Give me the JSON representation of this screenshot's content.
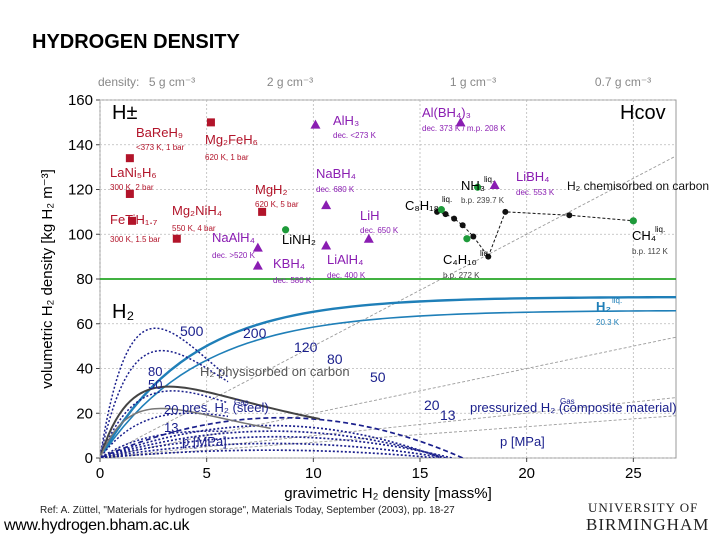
{
  "title": "HYDROGEN DENSITY",
  "reference": "Ref: A. Züttel, \"Materials for hydrogen storage\", Materials Today, September (2003), pp. 18-27",
  "url": "www.hydrogen.bham.ac.uk",
  "university": {
    "line1": "UNIVERSITY OF",
    "line2": "BIRMINGHAM"
  },
  "colors": {
    "material": "#b2142a",
    "complex": "#8a1db2",
    "dot": "#1e9a3a",
    "pressure": "#1a1f8c",
    "h2liquid": "#1f7fb8",
    "h2line": "#26a626",
    "grid": "#b9b9b9",
    "gray": "#888888"
  },
  "chart_data": {
    "type": "scatter",
    "xlabel": "gravimetric H₂ density [mass%]",
    "ylabel": "volumetric H₂ density [kg H₂ m⁻³]",
    "xlim": [
      0,
      27
    ],
    "ylim": [
      0,
      160
    ],
    "xticks": [
      0,
      5,
      10,
      15,
      20,
      25
    ],
    "yticks": [
      0,
      20,
      40,
      60,
      80,
      100,
      120,
      140,
      160
    ],
    "grid": true,
    "density_label": "density:",
    "density_lines": [
      {
        "label": "5 g cm⁻³",
        "slope": 5
      },
      {
        "label": "2 g cm⁻³",
        "slope": 2
      },
      {
        "label": "1 g cm⁻³",
        "slope": 1
      },
      {
        "label": "0.7 g cm⁻³",
        "slope": 0.7
      }
    ],
    "regions": {
      "upper": "H±",
      "upper_right": "Hcov",
      "lower": "H₂",
      "h2_line_y": 80
    },
    "materials": [
      {
        "name": "BaReH₉",
        "x": 1.4,
        "y": 134,
        "note": "<373 K, 1 bar",
        "marker": "square",
        "color": "material"
      },
      {
        "name": "Mg₂FeH₆",
        "x": 5.2,
        "y": 150,
        "note": "620 K, 1 bar",
        "marker": "square",
        "color": "material"
      },
      {
        "name": "LaNi₅H₆",
        "x": 1.4,
        "y": 118,
        "note": "300 K, 2 bar",
        "marker": "square",
        "color": "material"
      },
      {
        "name": "FeTiH₁.₇",
        "x": 1.5,
        "y": 106,
        "note": "300 K, 1.5 bar",
        "marker": "square",
        "color": "material"
      },
      {
        "name": "MgH₂",
        "x": 7.6,
        "y": 110,
        "note": "620 K, 5 bar",
        "marker": "square",
        "color": "material"
      },
      {
        "name": "Mg₂NiH₄",
        "x": 3.6,
        "y": 98,
        "note": "550 K, 4 bar",
        "marker": "square",
        "color": "material"
      },
      {
        "name": "NaAlH₄",
        "x": 7.4,
        "y": 94,
        "note": "dec. >520 K",
        "marker": "triangle",
        "color": "complex"
      },
      {
        "name": "LiNH₂",
        "x": 8.7,
        "y": 102,
        "note": "",
        "marker": "circle",
        "color": "dot"
      },
      {
        "name": "KBH₄",
        "x": 7.4,
        "y": 86,
        "note": "dec. 580 K",
        "marker": "triangle",
        "color": "complex"
      },
      {
        "name": "AlH₃",
        "x": 10.1,
        "y": 149,
        "note": "dec. <273 K",
        "marker": "triangle",
        "color": "complex"
      },
      {
        "name": "NaBH₄",
        "x": 10.6,
        "y": 113,
        "note": "dec. 680 K",
        "marker": "triangle",
        "color": "complex"
      },
      {
        "name": "LiH",
        "x": 12.6,
        "y": 98,
        "note": "dec. 650 K",
        "marker": "triangle",
        "color": "complex"
      },
      {
        "name": "LiAlH₄",
        "x": 10.6,
        "y": 95,
        "note": "dec. 400 K",
        "marker": "triangle",
        "color": "complex"
      },
      {
        "name": "Al(BH₄)₃",
        "x": 16.9,
        "y": 150,
        "note": "dec. 373 K / m.p. 208 K",
        "marker": "triangle",
        "color": "complex"
      },
      {
        "name": "LiBH₄",
        "x": 18.5,
        "y": 122,
        "note": "dec. 553 K",
        "marker": "triangle",
        "color": "complex"
      },
      {
        "name": "NH₃",
        "x": 17.7,
        "y": 121,
        "note": "b.p. 239.7 K",
        "marker": "circle",
        "color": "dot",
        "tag": "liq."
      },
      {
        "name": "C₈H₁₈",
        "x": 16.0,
        "y": 111,
        "note": "",
        "marker": "circle",
        "color": "dot",
        "tag": "liq."
      },
      {
        "name": "C₄H₁₀",
        "x": 17.2,
        "y": 98,
        "note": "b.p. 272 K",
        "marker": "circle",
        "color": "dot",
        "tag": "liq."
      },
      {
        "name": "CH₄",
        "x": 25.0,
        "y": 106,
        "note": "b.p. 112 K",
        "marker": "circle",
        "color": "dot",
        "tag": "liq."
      },
      {
        "name": "H₂",
        "x": 26.0,
        "y": 71,
        "note": "20.3 K",
        "marker": "none",
        "color": "h2liquid",
        "tag": "liq."
      }
    ],
    "chemisorbed_curve": {
      "label": "H₂ chemisorbed on carbon",
      "points": [
        [
          15.8,
          110
        ],
        [
          16.2,
          109
        ],
        [
          16.6,
          107
        ],
        [
          17.0,
          104
        ],
        [
          17.5,
          99
        ],
        [
          18.2,
          90
        ],
        [
          19.0,
          110
        ],
        [
          22.0,
          108.5
        ],
        [
          25.0,
          106
        ]
      ]
    },
    "pressure_steel": {
      "label": "pres. H₂ (steel)",
      "gas": "Gas",
      "unit": "p [MPa]",
      "labels": [
        "80",
        "50",
        "20",
        "13"
      ]
    },
    "pressure_composite": {
      "label": "pressurized H₂ (composite material)",
      "gas": "Gas",
      "unit": "p [MPa]",
      "labels": [
        "500",
        "200",
        "120",
        "80",
        "50",
        "20",
        "13"
      ]
    },
    "physisorbed_label": "H₂ physisorbed on carbon"
  }
}
